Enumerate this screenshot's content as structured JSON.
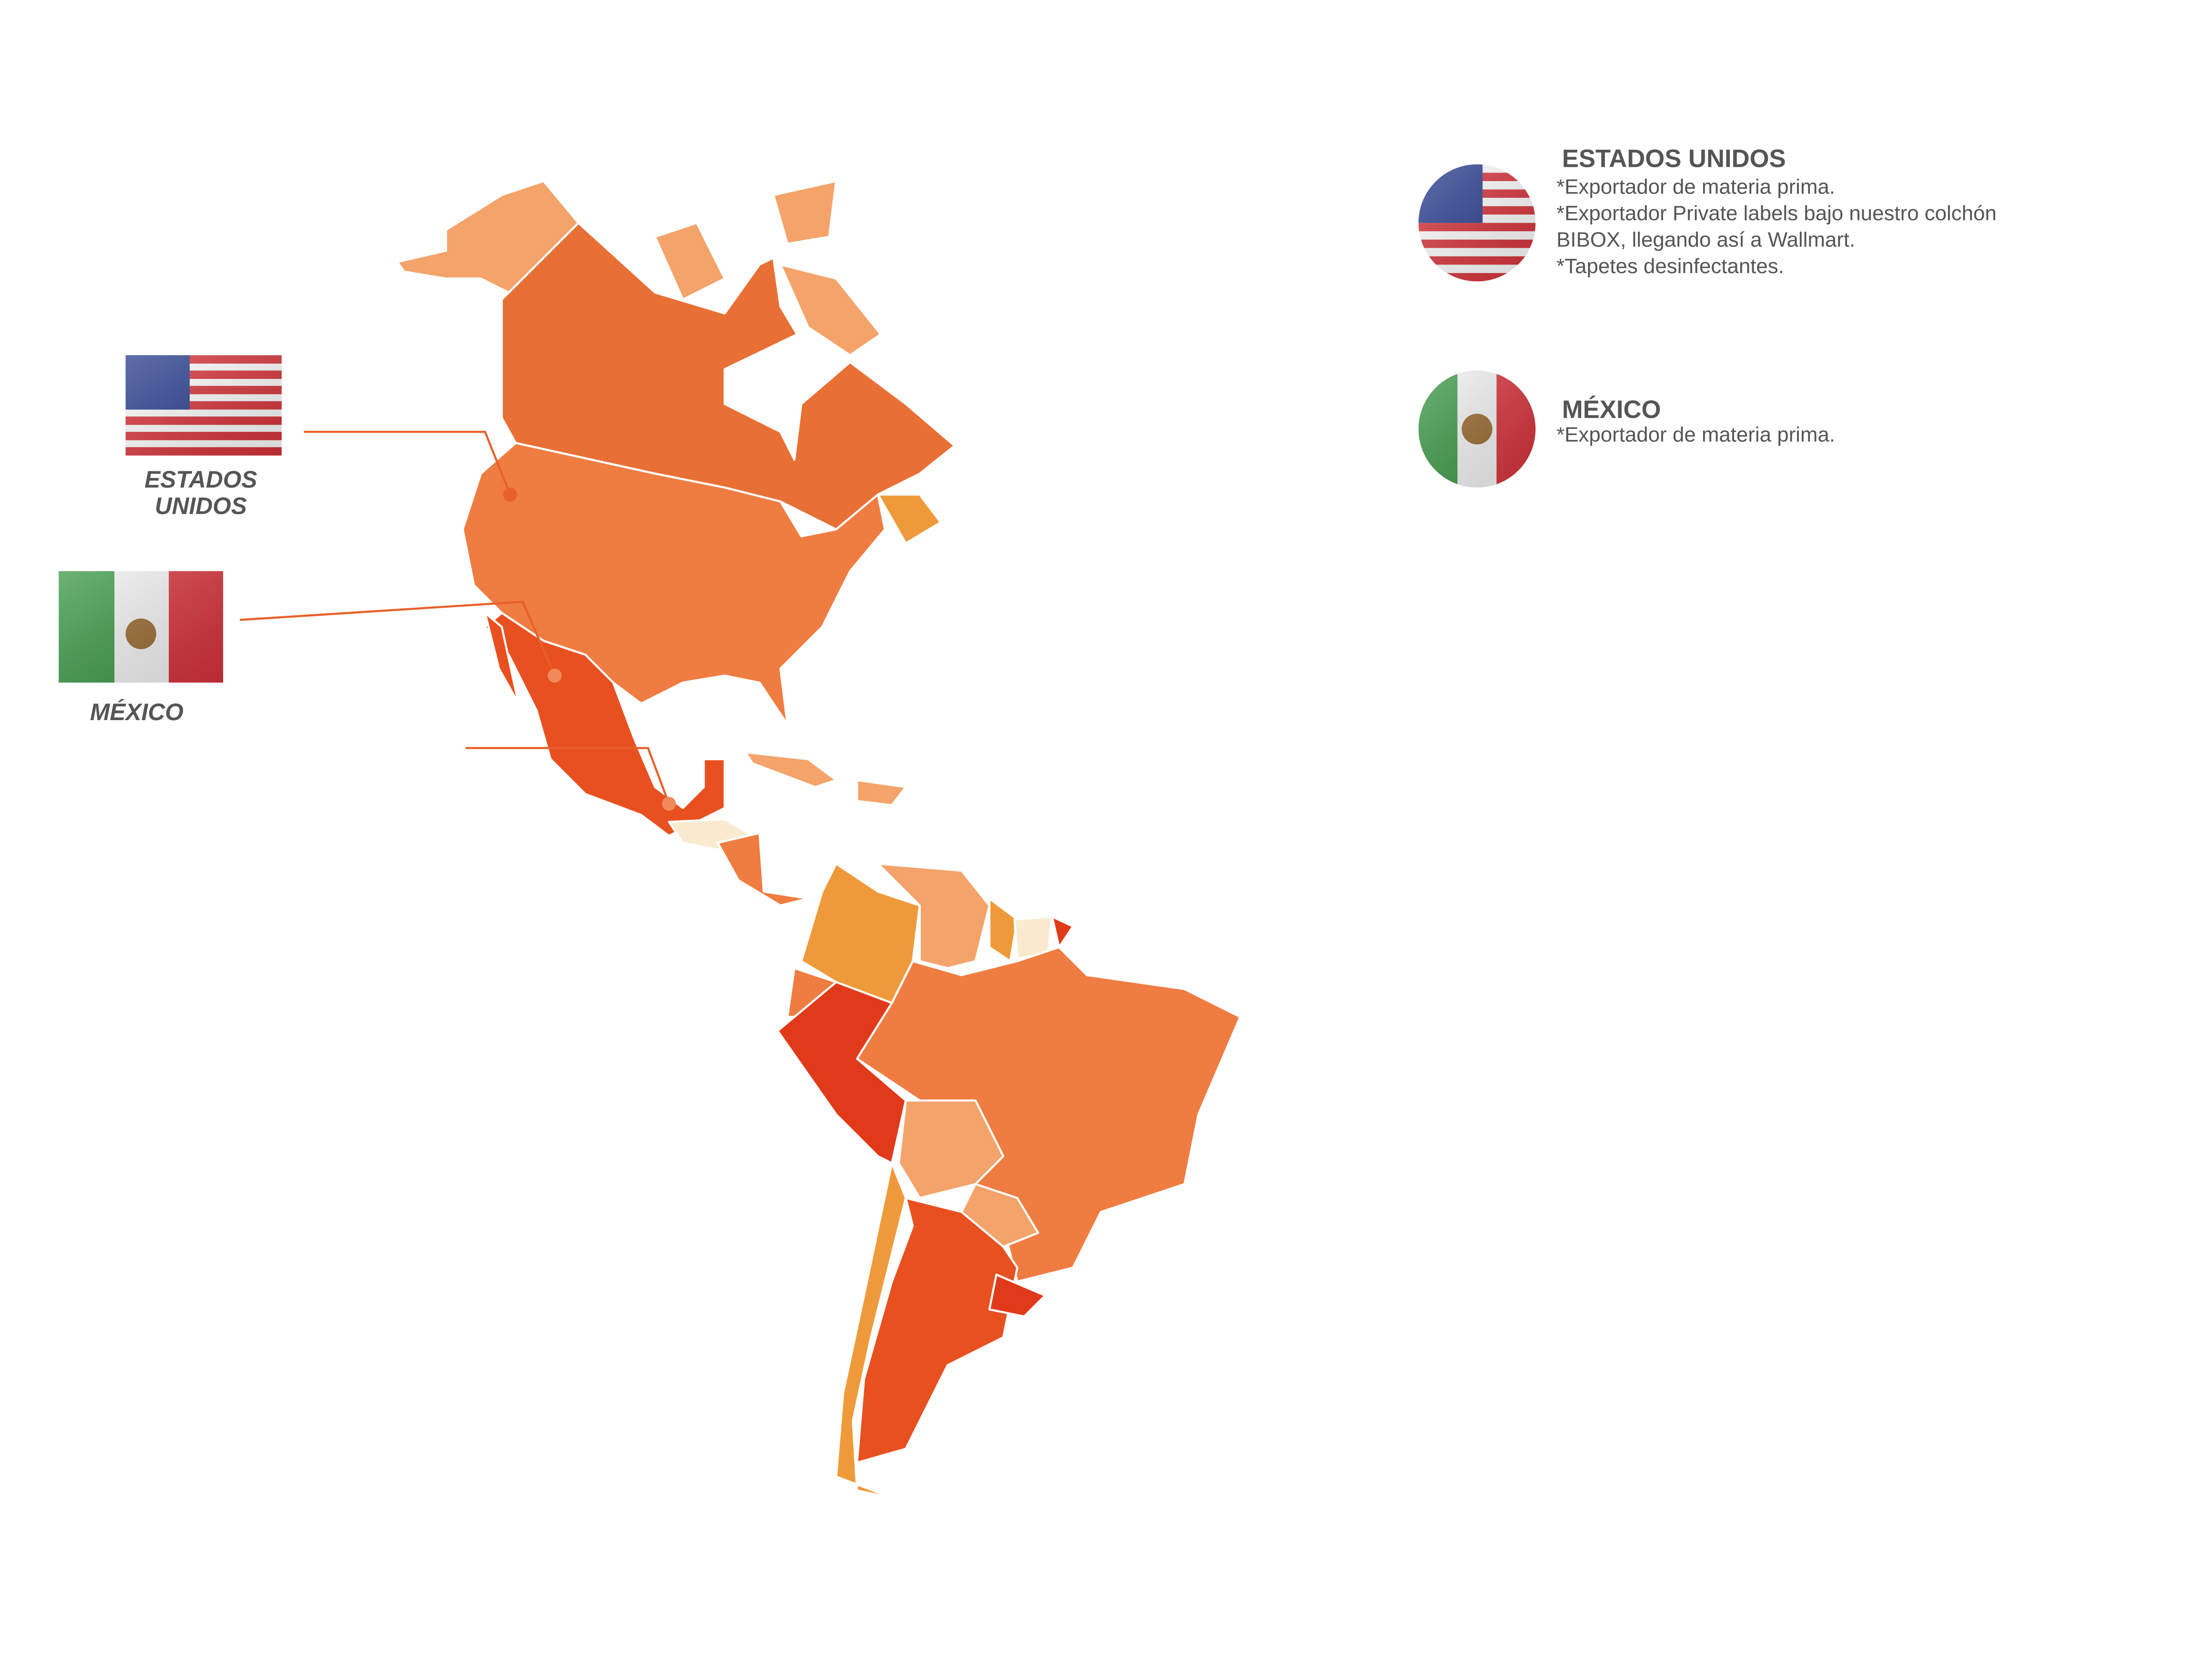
{
  "map_labels": [
    {
      "lines": [
        "ESTADOS",
        "UNIDOS"
      ]
    },
    {
      "lines": [
        "MÉXICO"
      ]
    }
  ],
  "entries": [
    {
      "title": "ESTADOS UNIDOS",
      "lines": [
        "*Exportador de materia prima.",
        "*Exportador Private labels bajo nuestro colchón",
        "BIBOX, llegando así a Wallmart.",
        "*Tapetes desinfectantes."
      ]
    },
    {
      "title": "MÉXICO",
      "lines": [
        "*Exportador de materia prima."
      ]
    }
  ]
}
